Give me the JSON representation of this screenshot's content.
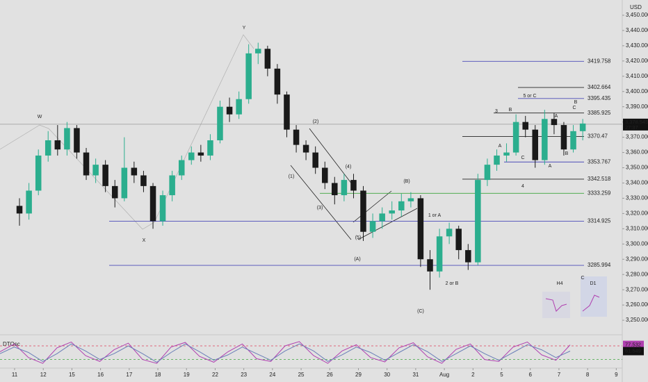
{
  "chart_data": {
    "type": "candlestick",
    "currency": "USD",
    "xlim": [
      -0.51,
      21.21
    ],
    "ylim": [
      3242.3,
      3460
    ],
    "xticks": [
      {
        "value": 0,
        "label": "11"
      },
      {
        "value": 1,
        "label": "12"
      },
      {
        "value": 2,
        "label": "15"
      },
      {
        "value": 3,
        "label": "16"
      },
      {
        "value": 4,
        "label": "17"
      },
      {
        "value": 5,
        "label": "18"
      },
      {
        "value": 6,
        "label": "19"
      },
      {
        "value": 7,
        "label": "22"
      },
      {
        "value": 8,
        "label": "23"
      },
      {
        "value": 9,
        "label": "24"
      },
      {
        "value": 10,
        "label": "25"
      },
      {
        "value": 11,
        "label": "26"
      },
      {
        "value": 12,
        "label": "29"
      },
      {
        "value": 13,
        "label": "30"
      },
      {
        "value": 14,
        "label": "31"
      },
      {
        "value": 15,
        "label": "Aug"
      },
      {
        "value": 16,
        "label": "2"
      },
      {
        "value": 17,
        "label": "5"
      },
      {
        "value": 18,
        "label": "6"
      },
      {
        "value": 19,
        "label": "7"
      },
      {
        "value": 20,
        "label": "8"
      },
      {
        "value": 21,
        "label": "9"
      }
    ],
    "yticks": [
      {
        "value": 3250,
        "label": "3,250.000"
      },
      {
        "value": 3260,
        "label": "3,260.000"
      },
      {
        "value": 3270,
        "label": "3,270.000"
      },
      {
        "value": 3280,
        "label": "3,280.000"
      },
      {
        "value": 3290,
        "label": "3,290.000"
      },
      {
        "value": 3300,
        "label": "3,300.000"
      },
      {
        "value": 3310,
        "label": "3,310.000"
      },
      {
        "value": 3320,
        "label": "3,320.000"
      },
      {
        "value": 3330,
        "label": "3,330.000"
      },
      {
        "value": 3340,
        "label": "3,340.000"
      },
      {
        "value": 3350,
        "label": "3,350.000"
      },
      {
        "value": 3360,
        "label": "3,360.000"
      },
      {
        "value": 3370,
        "label": "3,370.000"
      },
      {
        "value": 3380,
        "label": "3,380.000"
      },
      {
        "value": 3390,
        "label": "3,390.000"
      },
      {
        "value": 3400,
        "label": "3,400.000"
      },
      {
        "value": 3410,
        "label": "3,410.000"
      },
      {
        "value": 3420,
        "label": "3,420.000"
      },
      {
        "value": 3430,
        "label": "3,430.000"
      },
      {
        "value": 3440,
        "label": "3,440.000"
      },
      {
        "value": 3450,
        "label": "3,450.000"
      }
    ],
    "up_color": "#2bae8e",
    "down_color": "#1a1a1a",
    "x": [
      0.17,
      0.5,
      0.83,
      1.17,
      1.5,
      1.83,
      2.17,
      2.5,
      2.83,
      3.17,
      3.5,
      3.83,
      4.17,
      4.5,
      4.83,
      5.17,
      5.5,
      5.83,
      6.17,
      6.5,
      6.83,
      7.17,
      7.5,
      7.83,
      8.17,
      8.5,
      8.83,
      9.17,
      9.5,
      9.83,
      10.17,
      10.5,
      10.83,
      11.17,
      11.5,
      11.83,
      12.17,
      12.5,
      12.83,
      13.17,
      13.5,
      13.83,
      14.17,
      14.5,
      14.83,
      15.17,
      15.5,
      15.83,
      16.17,
      16.5,
      16.83,
      17.17,
      17.5,
      17.83,
      18.17,
      18.5,
      18.83,
      19.17,
      19.5,
      19.83
    ],
    "open": [
      3325,
      3320,
      3335,
      3358,
      3368,
      3362,
      3376,
      3360,
      3345,
      3352,
      3338,
      3330,
      3350,
      3345,
      3338,
      3315,
      3332,
      3345,
      3355,
      3360,
      3358,
      3368,
      3390,
      3385,
      3395,
      3425,
      3428,
      3415,
      3398,
      3375,
      3365,
      3360,
      3350,
      3340,
      3332,
      3342,
      3335,
      3308,
      3315,
      3320,
      3322,
      3328,
      3330,
      3290,
      3282,
      3305,
      3310,
      3296,
      3288,
      3342,
      3352,
      3358,
      3360,
      3380,
      3375,
      3355,
      3382,
      3378,
      3362,
      3374
    ],
    "high": [
      3330,
      3340,
      3362,
      3374,
      3378,
      3380,
      3378,
      3363,
      3356,
      3355,
      3342,
      3370,
      3354,
      3348,
      3340,
      3335,
      3348,
      3358,
      3364,
      3365,
      3372,
      3394,
      3396,
      3400,
      3431,
      3432,
      3430,
      3418,
      3400,
      3378,
      3368,
      3364,
      3354,
      3344,
      3346,
      3346,
      3338,
      3320,
      3324,
      3328,
      3333,
      3334,
      3332,
      3296,
      3310,
      3314,
      3312,
      3300,
      3346,
      3356,
      3362,
      3366,
      3385,
      3384,
      3378,
      3388,
      3386,
      3380,
      3378,
      3382
    ],
    "low": [
      3312,
      3316,
      3332,
      3354,
      3358,
      3358,
      3356,
      3342,
      3340,
      3334,
      3324,
      3328,
      3340,
      3334,
      3310,
      3312,
      3328,
      3342,
      3352,
      3354,
      3355,
      3366,
      3380,
      3382,
      3392,
      3418,
      3410,
      3392,
      3370,
      3360,
      3355,
      3346,
      3336,
      3326,
      3328,
      3330,
      3302,
      3304,
      3310,
      3316,
      3318,
      3324,
      3285,
      3270,
      3278,
      3300,
      3290,
      3283,
      3286,
      3338,
      3348,
      3354,
      3358,
      3370,
      3350,
      3352,
      3372,
      3358,
      3360,
      3368
    ],
    "close": [
      3320,
      3335,
      3358,
      3368,
      3362,
      3376,
      3360,
      3345,
      3352,
      3338,
      3330,
      3350,
      3345,
      3338,
      3315,
      3332,
      3345,
      3355,
      3360,
      3358,
      3368,
      3390,
      3385,
      3395,
      3425,
      3428,
      3415,
      3398,
      3375,
      3365,
      3360,
      3350,
      3340,
      3332,
      3342,
      3335,
      3308,
      3315,
      3320,
      3322,
      3328,
      3330,
      3290,
      3282,
      3305,
      3310,
      3296,
      3288,
      3342,
      3352,
      3358,
      3360,
      3380,
      3375,
      3355,
      3382,
      3378,
      3362,
      3374,
      3379
    ],
    "last_price": {
      "value": 3378.545,
      "label": "3,378.545"
    },
    "countdown": "27:37",
    "levels": [
      {
        "value": 3419.758,
        "color": "#4a4ab8",
        "label_color": "#222222"
      },
      {
        "value": 3402.664,
        "color": "#222222",
        "label_color": "#222222"
      },
      {
        "value": 3395.435,
        "color": "#4a4ab8",
        "label_color": "#e0405a"
      },
      {
        "value": 3385.925,
        "color": "#222222",
        "label_color": "#222222"
      },
      {
        "value": 3370.47,
        "color": "#222222",
        "label_color": "#222222"
      },
      {
        "value": 3353.767,
        "color": "#4a4ab8",
        "label_color": "#222222"
      },
      {
        "value": 3342.518,
        "color": "#222222",
        "label_color": "#222222"
      },
      {
        "value": 3333.259,
        "color": "#3aa63a",
        "label_color": "#222222"
      },
      {
        "value": 3314.925,
        "color": "#4a4ab8",
        "label_color": "#222222"
      },
      {
        "value": 3285.994,
        "color": "#4a4ab8",
        "label_color": "#2e6fe0"
      }
    ],
    "annotations": [
      {
        "text": "W",
        "color": "#222222"
      },
      {
        "text": "X",
        "color": "#222222"
      },
      {
        "text": "Y",
        "color": "#222222"
      },
      {
        "text": "(1)",
        "color": "#222222"
      },
      {
        "text": "(2)",
        "color": "#222222"
      },
      {
        "text": "(3)",
        "color": "#222222"
      },
      {
        "text": "(4)",
        "color": "#222222"
      },
      {
        "text": "(5)",
        "color": "#222222"
      },
      {
        "text": "(A)",
        "color": "#e0405a"
      },
      {
        "text": "(B)",
        "color": "#e0405a"
      },
      {
        "text": "(C)",
        "color": "#e0405a"
      },
      {
        "text": "1 or A",
        "color": "#222222"
      },
      {
        "text": "2 or B",
        "color": "#222222"
      },
      {
        "text": "3",
        "color": "#222222"
      },
      {
        "text": "B",
        "color": "#4a4ab8"
      },
      {
        "text": "A",
        "color": "#4a4ab8"
      },
      {
        "text": "C",
        "color": "#222222"
      },
      {
        "text": "4",
        "color": "#222222"
      },
      {
        "text": "5 or C",
        "color": "#222222"
      },
      {
        "text": "B",
        "color": "#4a4ab8"
      },
      {
        "text": "C",
        "color": "#e0405a"
      },
      {
        "text": "A",
        "color": "#e0405a"
      },
      {
        "text": "B",
        "color": "#e0405a"
      },
      {
        "text": "A",
        "color": "#4a4ab8"
      },
      {
        "text": "C",
        "color": "#4a4ab8"
      },
      {
        "text": "H4",
        "color": "#222222"
      },
      {
        "text": "D1",
        "color": "#222222"
      }
    ],
    "oscillator": {
      "name": "DTOsc",
      "ylim": [
        0,
        100
      ],
      "levels": [
        {
          "value": 75,
          "color": "#e0405a"
        },
        {
          "value": 40,
          "color": "#3aa63a"
        }
      ],
      "series": [
        {
          "color": "#b03fb0",
          "label": "77.532",
          "values": [
            60,
            80,
            45,
            30,
            70,
            85,
            50,
            35,
            65,
            82,
            40,
            30,
            72,
            84,
            48,
            33,
            60,
            80,
            42,
            35,
            75,
            86,
            50,
            30,
            62,
            78,
            45,
            34,
            70,
            83,
            47,
            30,
            66,
            80,
            40,
            35,
            72,
            85,
            52,
            38,
            77.532
          ]
        },
        {
          "color": "#6a7fb8",
          "label": "61.549",
          "values": [
            55,
            72,
            58,
            35,
            55,
            80,
            62,
            40,
            55,
            75,
            55,
            33,
            58,
            80,
            60,
            38,
            52,
            72,
            55,
            38,
            62,
            80,
            62,
            35,
            52,
            72,
            58,
            38,
            58,
            78,
            60,
            35,
            55,
            75,
            55,
            38,
            58,
            78,
            65,
            45,
            61.549
          ]
        }
      ]
    }
  }
}
